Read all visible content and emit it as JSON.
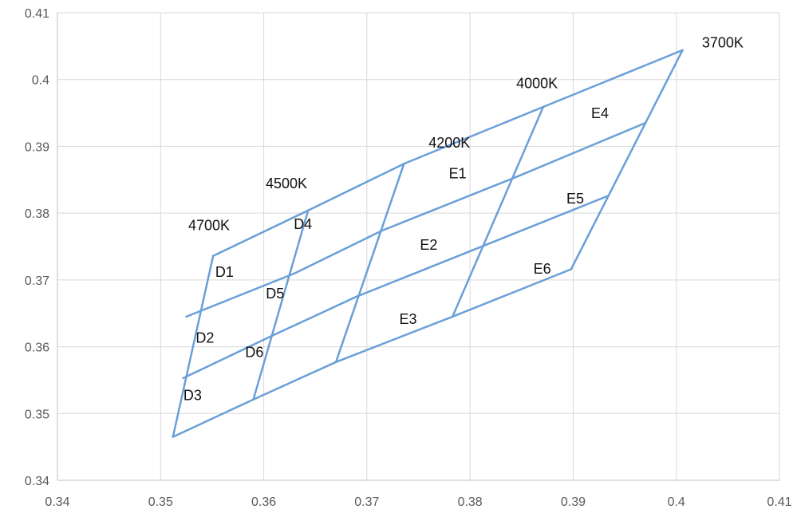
{
  "chart_data": {
    "type": "line",
    "xlim": [
      0.34,
      0.41
    ],
    "ylim": [
      0.34,
      0.41
    ],
    "x_ticks": [
      "0.34",
      "0.35",
      "0.36",
      "0.37",
      "0.38",
      "0.39",
      "0.4",
      "0.41"
    ],
    "y_ticks": [
      "0.34",
      "0.35",
      "0.36",
      "0.37",
      "0.38",
      "0.39",
      "0.4",
      "0.41"
    ],
    "grid": true,
    "line_color": "#6a9fd8",
    "series": [
      {
        "points": [
          [
            0.3551,
            0.3736
          ],
          [
            0.3643,
            0.3804
          ],
          [
            0.3736,
            0.3874
          ],
          [
            0.3871,
            0.3959
          ],
          [
            0.4006,
            0.4044
          ]
        ]
      },
      {
        "points": [
          [
            0.3525,
            0.3645
          ],
          [
            0.363,
            0.371
          ],
          [
            0.3715,
            0.3774
          ],
          [
            0.3843,
            0.3853
          ],
          [
            0.397,
            0.3935
          ]
        ]
      },
      {
        "points": [
          [
            0.3522,
            0.3553
          ],
          [
            0.3609,
            0.3617
          ],
          [
            0.369,
            0.3675
          ],
          [
            0.3813,
            0.3751
          ],
          [
            0.3934,
            0.3826
          ]
        ]
      },
      {
        "points": [
          [
            0.3512,
            0.3465
          ],
          [
            0.359,
            0.3521
          ],
          [
            0.367,
            0.3577
          ],
          [
            0.3783,
            0.3645
          ],
          [
            0.3898,
            0.3716
          ]
        ]
      },
      {
        "points": [
          [
            0.3551,
            0.3736
          ],
          [
            0.3512,
            0.3465
          ]
        ]
      },
      {
        "points": [
          [
            0.3643,
            0.3804
          ],
          [
            0.359,
            0.3521
          ]
        ]
      },
      {
        "points": [
          [
            0.3736,
            0.3874
          ],
          [
            0.367,
            0.3577
          ]
        ]
      },
      {
        "points": [
          [
            0.3871,
            0.3959
          ],
          [
            0.3783,
            0.3645
          ]
        ]
      },
      {
        "points": [
          [
            0.4006,
            0.4044
          ],
          [
            0.3898,
            0.3716
          ]
        ]
      }
    ],
    "annotations": [
      {
        "text": "3700K",
        "x": 0.4045,
        "y": 0.4054
      },
      {
        "text": "4000K",
        "x": 0.3865,
        "y": 0.3993
      },
      {
        "text": "4200K",
        "x": 0.378,
        "y": 0.3904
      },
      {
        "text": "4500K",
        "x": 0.3622,
        "y": 0.3843
      },
      {
        "text": "4700K",
        "x": 0.3547,
        "y": 0.378
      },
      {
        "text": "E4",
        "x": 0.3926,
        "y": 0.3948
      },
      {
        "text": "E1",
        "x": 0.3788,
        "y": 0.3858
      },
      {
        "text": "E5",
        "x": 0.3902,
        "y": 0.382
      },
      {
        "text": "D4",
        "x": 0.3638,
        "y": 0.3782
      },
      {
        "text": "E2",
        "x": 0.376,
        "y": 0.3751
      },
      {
        "text": "E6",
        "x": 0.387,
        "y": 0.3715
      },
      {
        "text": "D1",
        "x": 0.3562,
        "y": 0.371
      },
      {
        "text": "D5",
        "x": 0.3611,
        "y": 0.3678
      },
      {
        "text": "E3",
        "x": 0.374,
        "y": 0.364
      },
      {
        "text": "D2",
        "x": 0.3543,
        "y": 0.3612
      },
      {
        "text": "D6",
        "x": 0.3591,
        "y": 0.359
      },
      {
        "text": "D3",
        "x": 0.3531,
        "y": 0.3526
      }
    ]
  }
}
